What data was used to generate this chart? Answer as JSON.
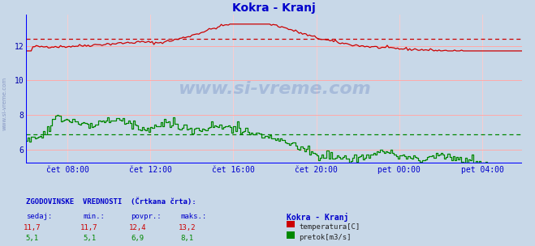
{
  "title": "Kokra - Kranj",
  "title_color": "#0000cc",
  "bg_color": "#c8d8e8",
  "plot_bg_color": "#c8d8e8",
  "x_label_color": "#0000cc",
  "y_label_color": "#0000aa",
  "grid_color_h": "#ffaaaa",
  "grid_color_v": "#ffcccc",
  "axis_color": "#0000ff",
  "watermark": "www.si-vreme.com",
  "x_ticks_labels": [
    "čet 08:00",
    "čet 12:00",
    "čet 16:00",
    "čet 20:00",
    "pet 00:00",
    "pet 04:00"
  ],
  "y_ticks": [
    6,
    8,
    10,
    12
  ],
  "ylim": [
    5.2,
    13.8
  ],
  "temp_color": "#cc0000",
  "flow_color": "#008800",
  "temp_avg": 12.4,
  "flow_avg": 6.9,
  "bottom_text_color": "#0000cc",
  "legend_title": "Kokra - Kranj",
  "table_header": "ZGODOVINSKE  VREDNOSTI  (Črtkana črta):",
  "col_headers": [
    "sedaj:",
    "min.:",
    "povpr.:",
    "maks.:"
  ],
  "temp_vals": [
    "11,7",
    "11,7",
    "12,4",
    "13,2"
  ],
  "flow_vals": [
    "5,1",
    "5,1",
    "6,9",
    "8,1"
  ],
  "temp_legend": "temperatura[C]",
  "flow_legend": "pretok[m3/s]",
  "side_text": "www.si-vreme.com"
}
